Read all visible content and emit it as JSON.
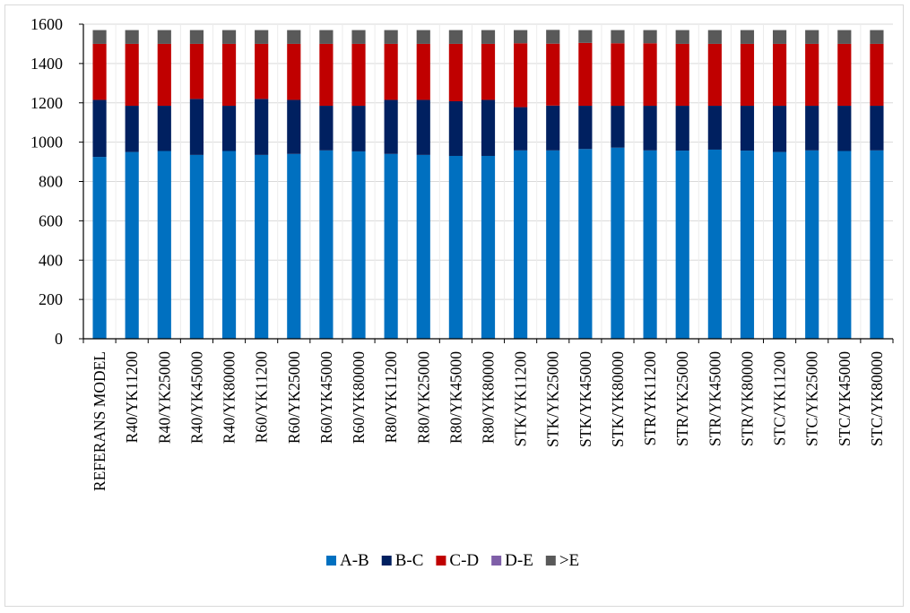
{
  "chart_data": {
    "type": "bar",
    "stacked": true,
    "title": "",
    "xlabel": "",
    "ylabel": "",
    "ylim": [
      0,
      1600
    ],
    "yticks": [
      0,
      200,
      400,
      600,
      800,
      1000,
      1200,
      1400,
      1600
    ],
    "grid": "horizontal",
    "legend_position": "bottom",
    "categories": [
      "REFERANS MODEL",
      "R40/YK11200",
      "R40/YK25000",
      "R40/YK45000",
      "R40/YK80000",
      "R60/YK11200",
      "R60/YK25000",
      "R60/YK45000",
      "R60/YK80000",
      "R80/YK11200",
      "R80/YK25000",
      "R80/YK45000",
      "R80/YK80000",
      "STK/YK11200",
      "STK/YK25000",
      "STK/YK45000",
      "STK/YK80000",
      "STR/YK11200",
      "STR/YK25000",
      "STR/YK45000",
      "STR/YK80000",
      "STC/YK11200",
      "STC/YK25000",
      "STC/YK45000",
      "STC/YK80000"
    ],
    "series": [
      {
        "name": "A-B",
        "color": "#0070C0",
        "values": [
          925,
          950,
          955,
          935,
          955,
          935,
          940,
          958,
          953,
          940,
          935,
          930,
          930,
          958,
          958,
          965,
          972,
          958,
          957,
          962,
          957,
          950,
          958,
          955,
          958
        ]
      },
      {
        "name": "B-C",
        "color": "#002060",
        "values": [
          290,
          235,
          230,
          285,
          230,
          285,
          275,
          227,
          232,
          275,
          280,
          278,
          285,
          220,
          228,
          220,
          213,
          227,
          228,
          223,
          228,
          235,
          227,
          230,
          227
        ]
      },
      {
        "name": "C-D",
        "color": "#C00000",
        "values": [
          285,
          315,
          315,
          280,
          315,
          280,
          285,
          315,
          315,
          285,
          285,
          292,
          285,
          325,
          315,
          320,
          318,
          318,
          315,
          315,
          315,
          315,
          315,
          315,
          315
        ]
      },
      {
        "name": "D-E",
        "color": "#7F5FA8",
        "values": [
          0,
          0,
          0,
          0,
          0,
          0,
          0,
          0,
          0,
          0,
          0,
          0,
          0,
          0,
          0,
          0,
          0,
          0,
          0,
          0,
          0,
          0,
          0,
          0,
          0
        ]
      },
      {
        "name": ">E",
        "color": "#595959",
        "values": [
          70,
          70,
          70,
          70,
          70,
          70,
          70,
          70,
          70,
          70,
          70,
          70,
          70,
          67,
          70,
          65,
          67,
          67,
          70,
          70,
          70,
          70,
          70,
          70,
          70
        ]
      }
    ]
  }
}
